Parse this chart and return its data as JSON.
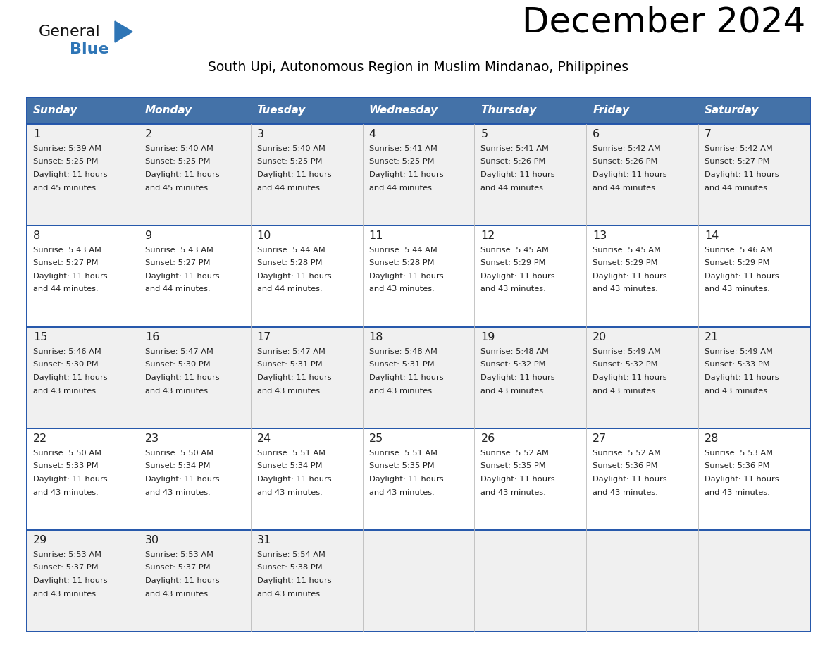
{
  "title": "December 2024",
  "subtitle": "South Upi, Autonomous Region in Muslim Mindanao, Philippines",
  "days_of_week": [
    "Sunday",
    "Monday",
    "Tuesday",
    "Wednesday",
    "Thursday",
    "Friday",
    "Saturday"
  ],
  "header_bg": "#4472a8",
  "header_text": "#ffffff",
  "row_bg_odd": "#f0f0f0",
  "row_bg_even": "#ffffff",
  "border_color": "#2255aa",
  "text_color": "#222222",
  "day_num_color": "#222222",
  "calendar_data": [
    [
      {
        "day": 1,
        "sunrise": "5:39 AM",
        "sunset": "5:25 PM",
        "daylight_line1": "Daylight: 11 hours",
        "daylight_line2": "and 45 minutes."
      },
      {
        "day": 2,
        "sunrise": "5:40 AM",
        "sunset": "5:25 PM",
        "daylight_line1": "Daylight: 11 hours",
        "daylight_line2": "and 45 minutes."
      },
      {
        "day": 3,
        "sunrise": "5:40 AM",
        "sunset": "5:25 PM",
        "daylight_line1": "Daylight: 11 hours",
        "daylight_line2": "and 44 minutes."
      },
      {
        "day": 4,
        "sunrise": "5:41 AM",
        "sunset": "5:25 PM",
        "daylight_line1": "Daylight: 11 hours",
        "daylight_line2": "and 44 minutes."
      },
      {
        "day": 5,
        "sunrise": "5:41 AM",
        "sunset": "5:26 PM",
        "daylight_line1": "Daylight: 11 hours",
        "daylight_line2": "and 44 minutes."
      },
      {
        "day": 6,
        "sunrise": "5:42 AM",
        "sunset": "5:26 PM",
        "daylight_line1": "Daylight: 11 hours",
        "daylight_line2": "and 44 minutes."
      },
      {
        "day": 7,
        "sunrise": "5:42 AM",
        "sunset": "5:27 PM",
        "daylight_line1": "Daylight: 11 hours",
        "daylight_line2": "and 44 minutes."
      }
    ],
    [
      {
        "day": 8,
        "sunrise": "5:43 AM",
        "sunset": "5:27 PM",
        "daylight_line1": "Daylight: 11 hours",
        "daylight_line2": "and 44 minutes."
      },
      {
        "day": 9,
        "sunrise": "5:43 AM",
        "sunset": "5:27 PM",
        "daylight_line1": "Daylight: 11 hours",
        "daylight_line2": "and 44 minutes."
      },
      {
        "day": 10,
        "sunrise": "5:44 AM",
        "sunset": "5:28 PM",
        "daylight_line1": "Daylight: 11 hours",
        "daylight_line2": "and 44 minutes."
      },
      {
        "day": 11,
        "sunrise": "5:44 AM",
        "sunset": "5:28 PM",
        "daylight_line1": "Daylight: 11 hours",
        "daylight_line2": "and 43 minutes."
      },
      {
        "day": 12,
        "sunrise": "5:45 AM",
        "sunset": "5:29 PM",
        "daylight_line1": "Daylight: 11 hours",
        "daylight_line2": "and 43 minutes."
      },
      {
        "day": 13,
        "sunrise": "5:45 AM",
        "sunset": "5:29 PM",
        "daylight_line1": "Daylight: 11 hours",
        "daylight_line2": "and 43 minutes."
      },
      {
        "day": 14,
        "sunrise": "5:46 AM",
        "sunset": "5:29 PM",
        "daylight_line1": "Daylight: 11 hours",
        "daylight_line2": "and 43 minutes."
      }
    ],
    [
      {
        "day": 15,
        "sunrise": "5:46 AM",
        "sunset": "5:30 PM",
        "daylight_line1": "Daylight: 11 hours",
        "daylight_line2": "and 43 minutes."
      },
      {
        "day": 16,
        "sunrise": "5:47 AM",
        "sunset": "5:30 PM",
        "daylight_line1": "Daylight: 11 hours",
        "daylight_line2": "and 43 minutes."
      },
      {
        "day": 17,
        "sunrise": "5:47 AM",
        "sunset": "5:31 PM",
        "daylight_line1": "Daylight: 11 hours",
        "daylight_line2": "and 43 minutes."
      },
      {
        "day": 18,
        "sunrise": "5:48 AM",
        "sunset": "5:31 PM",
        "daylight_line1": "Daylight: 11 hours",
        "daylight_line2": "and 43 minutes."
      },
      {
        "day": 19,
        "sunrise": "5:48 AM",
        "sunset": "5:32 PM",
        "daylight_line1": "Daylight: 11 hours",
        "daylight_line2": "and 43 minutes."
      },
      {
        "day": 20,
        "sunrise": "5:49 AM",
        "sunset": "5:32 PM",
        "daylight_line1": "Daylight: 11 hours",
        "daylight_line2": "and 43 minutes."
      },
      {
        "day": 21,
        "sunrise": "5:49 AM",
        "sunset": "5:33 PM",
        "daylight_line1": "Daylight: 11 hours",
        "daylight_line2": "and 43 minutes."
      }
    ],
    [
      {
        "day": 22,
        "sunrise": "5:50 AM",
        "sunset": "5:33 PM",
        "daylight_line1": "Daylight: 11 hours",
        "daylight_line2": "and 43 minutes."
      },
      {
        "day": 23,
        "sunrise": "5:50 AM",
        "sunset": "5:34 PM",
        "daylight_line1": "Daylight: 11 hours",
        "daylight_line2": "and 43 minutes."
      },
      {
        "day": 24,
        "sunrise": "5:51 AM",
        "sunset": "5:34 PM",
        "daylight_line1": "Daylight: 11 hours",
        "daylight_line2": "and 43 minutes."
      },
      {
        "day": 25,
        "sunrise": "5:51 AM",
        "sunset": "5:35 PM",
        "daylight_line1": "Daylight: 11 hours",
        "daylight_line2": "and 43 minutes."
      },
      {
        "day": 26,
        "sunrise": "5:52 AM",
        "sunset": "5:35 PM",
        "daylight_line1": "Daylight: 11 hours",
        "daylight_line2": "and 43 minutes."
      },
      {
        "day": 27,
        "sunrise": "5:52 AM",
        "sunset": "5:36 PM",
        "daylight_line1": "Daylight: 11 hours",
        "daylight_line2": "and 43 minutes."
      },
      {
        "day": 28,
        "sunrise": "5:53 AM",
        "sunset": "5:36 PM",
        "daylight_line1": "Daylight: 11 hours",
        "daylight_line2": "and 43 minutes."
      }
    ],
    [
      {
        "day": 29,
        "sunrise": "5:53 AM",
        "sunset": "5:37 PM",
        "daylight_line1": "Daylight: 11 hours",
        "daylight_line2": "and 43 minutes."
      },
      {
        "day": 30,
        "sunrise": "5:53 AM",
        "sunset": "5:37 PM",
        "daylight_line1": "Daylight: 11 hours",
        "daylight_line2": "and 43 minutes."
      },
      {
        "day": 31,
        "sunrise": "5:54 AM",
        "sunset": "5:38 PM",
        "daylight_line1": "Daylight: 11 hours",
        "daylight_line2": "and 43 minutes."
      },
      null,
      null,
      null,
      null
    ]
  ],
  "logo_general_color": "#111111",
  "logo_blue_color": "#2e75b6",
  "figsize": [
    11.88,
    9.18
  ],
  "dpi": 100
}
